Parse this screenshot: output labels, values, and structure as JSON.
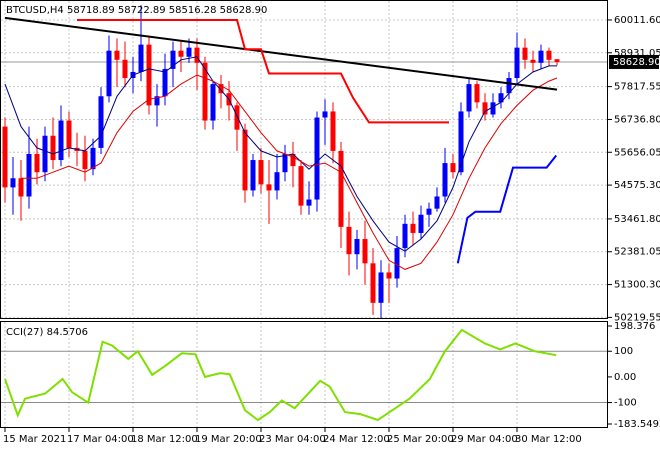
{
  "chart_data": [
    {
      "type": "candlestick",
      "title": "BTCUSD,H4  58718.89 58722.89 58516.28 58628.90",
      "categories": [
        "15 Mar 2021",
        null,
        null,
        null,
        null,
        null,
        null,
        null,
        "17 Mar 04:00",
        null,
        null,
        null,
        null,
        null,
        null,
        null,
        "18 Mar 12:00",
        null,
        null,
        null,
        null,
        null,
        null,
        null,
        "19 Mar 20:00",
        null,
        null,
        null,
        null,
        null,
        null,
        null,
        "23 Mar 04:00",
        null,
        null,
        null,
        null,
        null,
        null,
        null,
        "24 Mar 12:00",
        null,
        null,
        null,
        null,
        null,
        null,
        null,
        "25 Mar 20:00",
        null,
        null,
        null,
        null,
        null,
        null,
        null,
        "29 Mar 04:00",
        null,
        null,
        null,
        null,
        null,
        null,
        null,
        "30 Mar 12:00",
        null,
        null,
        null,
        null,
        null
      ],
      "open": [
        56500,
        54500,
        54800,
        54200,
        55600,
        55000,
        56200,
        55400,
        56700,
        55800,
        55700,
        55100,
        55800,
        57500,
        59000,
        58700,
        58100,
        58300,
        59200,
        57200,
        57500,
        58400,
        59000,
        58800,
        59100,
        58600,
        56700,
        57900,
        57600,
        57200,
        56400,
        54400,
        55400,
        54600,
        54400,
        55000,
        55600,
        55200,
        53900,
        54100,
        56800,
        57000,
        55700,
        53200,
        52300,
        52800,
        52000,
        50700,
        51700,
        51500,
        52500,
        53300,
        53000,
        53600,
        53800,
        54200,
        55300,
        55000,
        57000,
        57900,
        57300,
        56900,
        57300,
        57600,
        58100,
        59100,
        58700,
        58600,
        59000,
        58718.89
      ],
      "high": [
        56800,
        55500,
        55400,
        56500,
        56100,
        56500,
        56800,
        57200,
        57000,
        56300,
        56200,
        56100,
        57800,
        59500,
        59400,
        59300,
        58800,
        60500,
        59500,
        57900,
        58900,
        59300,
        59300,
        59400,
        59400,
        58800,
        58000,
        58200,
        58000,
        57300,
        56600,
        55600,
        55800,
        55400,
        55600,
        55900,
        56000,
        55400,
        54700,
        57000,
        57400,
        57300,
        56000,
        53700,
        53100,
        53400,
        52500,
        52100,
        52000,
        52900,
        53600,
        53700,
        53900,
        54000,
        54500,
        55800,
        55600,
        57300,
        58100,
        58000,
        57600,
        57600,
        57800,
        58300,
        59600,
        59400,
        59000,
        59200,
        59100,
        58722.89
      ],
      "low": [
        54000,
        53600,
        53400,
        53800,
        54600,
        54700,
        55100,
        55200,
        55500,
        55200,
        54700,
        54900,
        55600,
        57300,
        57800,
        57800,
        57600,
        58000,
        56900,
        56500,
        57200,
        57800,
        58300,
        58600,
        57700,
        56400,
        56400,
        57100,
        56700,
        55700,
        54000,
        54200,
        54300,
        53300,
        54100,
        54700,
        54500,
        53600,
        53600,
        53700,
        55900,
        55300,
        52500,
        51600,
        51800,
        51300,
        50300,
        50200,
        50700,
        51200,
        52200,
        52600,
        52800,
        53200,
        53700,
        54000,
        54800,
        54900,
        56800,
        57100,
        56700,
        56800,
        57100,
        57400,
        57900,
        58400,
        58300,
        58400,
        58500,
        58516.28
      ],
      "close": [
        54500,
        54800,
        54200,
        55600,
        55000,
        56200,
        55400,
        56700,
        55800,
        55700,
        55100,
        55800,
        57500,
        59000,
        58700,
        58100,
        58300,
        59200,
        57200,
        57500,
        58400,
        59000,
        58800,
        59100,
        58600,
        56700,
        57900,
        57600,
        57200,
        56400,
        54400,
        55400,
        54600,
        54400,
        55000,
        55600,
        55200,
        53900,
        54100,
        56800,
        57000,
        55700,
        53200,
        52300,
        52800,
        52000,
        50700,
        51700,
        51500,
        52500,
        53300,
        53000,
        53600,
        53800,
        54200,
        55300,
        55000,
        57000,
        57900,
        57300,
        56900,
        57300,
        57600,
        58100,
        59100,
        58700,
        58600,
        59000,
        58700,
        58628.9
      ],
      "up_color": "#0000ff",
      "down_color": "#ff0000",
      "ylim": [
        50200,
        60570
      ],
      "yticks": [
        {
          "value": 60011.6,
          "label": "60011.60"
        },
        {
          "value": 58931.05,
          "label": "58931.05"
        },
        {
          "value": 57817.55,
          "label": "57817.55"
        },
        {
          "value": 56736.8,
          "label": "56736.80"
        },
        {
          "value": 55656.05,
          "label": "55656.05"
        },
        {
          "value": 54575.3,
          "label": "54575.30"
        },
        {
          "value": 53461.8,
          "label": "53461.80"
        },
        {
          "value": 52381.05,
          "label": "52381.05"
        },
        {
          "value": 51300.3,
          "label": "51300.30"
        },
        {
          "value": 50219.55,
          "label": "50219.55"
        }
      ],
      "last": {
        "value": 58628.9,
        "label": "58628.90"
      },
      "grid": true,
      "lines": [
        {
          "color": "#000080",
          "width": 1,
          "x": [
            0,
            2,
            4,
            6,
            8,
            10,
            12,
            14,
            16,
            18,
            20,
            22,
            24,
            26,
            28,
            30,
            32,
            34,
            36,
            38,
            40,
            42,
            44,
            46,
            48,
            50,
            52,
            54,
            56,
            58,
            60,
            62,
            64,
            66,
            68,
            69
          ],
          "values": [
            57900,
            56500,
            55800,
            55600,
            55800,
            55700,
            56200,
            57500,
            58200,
            58400,
            58300,
            58700,
            58800,
            58000,
            57400,
            56300,
            55700,
            55500,
            55600,
            55100,
            55600,
            55200,
            54200,
            53400,
            52700,
            52400,
            52800,
            53400,
            54500,
            56000,
            57000,
            57300,
            57900,
            58300,
            58500,
            58500
          ]
        },
        {
          "color": "#dd0000",
          "width": 1,
          "x": [
            2,
            4,
            6,
            8,
            10,
            12,
            14,
            16,
            18,
            20,
            22,
            24,
            26,
            28,
            30,
            32,
            34,
            36,
            38,
            40,
            42,
            44,
            46,
            48,
            50,
            52,
            54,
            56,
            58,
            60,
            62,
            64,
            66,
            68,
            69
          ],
          "values": [
            54800,
            54800,
            55000,
            55200,
            55000,
            55300,
            56300,
            57000,
            57400,
            57500,
            57900,
            58200,
            58000,
            57700,
            57000,
            56300,
            55700,
            55500,
            55200,
            55300,
            55000,
            54000,
            53000,
            52100,
            51800,
            52000,
            52700,
            53600,
            54800,
            55800,
            56600,
            57200,
            57700,
            58000,
            58100
          ]
        },
        {
          "color": "#000000",
          "width": 2,
          "x": [
            0,
            69
          ],
          "values": [
            60080,
            57720
          ]
        },
        {
          "color": "#ff0000",
          "width": 2,
          "x": [
            9,
            29,
            30,
            32,
            33,
            42,
            43.5,
            45.5,
            55.5
          ],
          "values": [
            60011,
            60011,
            59050,
            59050,
            58250,
            58250,
            57450,
            56640,
            56640
          ]
        },
        {
          "color": "#0000ff",
          "width": 2,
          "x": [
            56.6,
            57.8,
            58.8,
            61.9,
            63.5,
            67.7,
            68.9
          ],
          "values": [
            52000,
            53500,
            53700,
            53700,
            55150,
            55150,
            55550
          ]
        }
      ]
    },
    {
      "type": "line",
      "title": "CCI(27) 84.5706",
      "color": "#7fe000",
      "x": [
        0,
        1.6,
        2.5,
        5,
        7.2,
        8.4,
        10.4,
        12.2,
        13.4,
        15.4,
        16.6,
        18.4,
        20,
        22.1,
        23.8,
        25,
        26.9,
        28.1,
        30,
        31.6,
        33.1,
        34.6,
        36.2,
        39.4,
        40.6,
        42.5,
        44.4,
        46.6,
        48.8,
        50.6,
        53.1,
        55,
        57.1,
        60,
        61.9,
        63.8,
        66.2,
        68.9
      ],
      "values": [
        -8,
        -150,
        -85,
        -65,
        -8,
        -60,
        -100,
        137,
        122,
        70,
        100,
        8,
        42,
        92,
        88,
        0,
        15,
        10,
        -130,
        -168,
        -137,
        -92,
        -122,
        -15,
        -38,
        -137,
        -145,
        -168,
        -122,
        -84,
        -8,
        100,
        183,
        130,
        107,
        130,
        100,
        84.5706
      ],
      "ylim": [
        -183.5492,
        198.376
      ],
      "yticks": [
        198.376,
        100,
        {
          "value": 0,
          "label": "0.00"
        },
        -100,
        -183.5492
      ],
      "levels": [
        100,
        -100
      ]
    }
  ]
}
